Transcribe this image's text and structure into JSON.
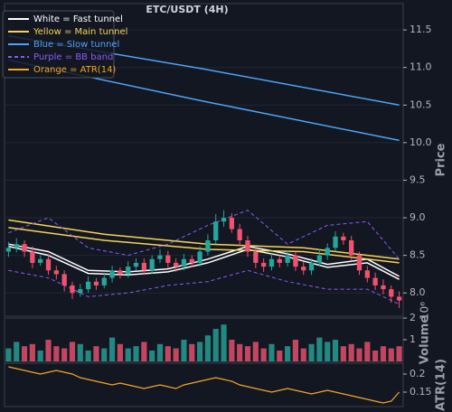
{
  "chart_data": [
    {
      "type": "candlestick",
      "title": "ETC/USDT (4H)",
      "ylabel": "Price",
      "xlim": [
        -0.5,
        49.5
      ],
      "ylim": [
        7.69,
        11.85
      ],
      "yticks": [
        {
          "value": 8,
          "label": "8.0"
        },
        8.5,
        {
          "value": 9,
          "label": "9.0"
        },
        9.5,
        {
          "value": 10,
          "label": "10.0"
        },
        10.5,
        {
          "value": 11,
          "label": "11.0"
        },
        11.5
      ],
      "grid": true,
      "legend": "upper left",
      "up_color": "#26a69a",
      "down_color": "#ef5370",
      "open": [
        8.55,
        8.6,
        8.65,
        8.55,
        8.4,
        8.45,
        8.3,
        8.25,
        8.1,
        8.0,
        8.05,
        8.15,
        8.1,
        8.2,
        8.3,
        8.25,
        8.35,
        8.4,
        8.3,
        8.45,
        8.5,
        8.4,
        8.35,
        8.45,
        8.4,
        8.55,
        8.7,
        8.95,
        9.0,
        8.85,
        8.7,
        8.55,
        8.4,
        8.35,
        8.45,
        8.4,
        8.5,
        8.35,
        8.3,
        8.4,
        8.5,
        8.6,
        8.75,
        8.7,
        8.5,
        8.3,
        8.2,
        8.1,
        8.05,
        7.95
      ],
      "high": [
        8.68,
        8.73,
        8.7,
        8.62,
        8.5,
        8.52,
        8.36,
        8.3,
        8.15,
        8.12,
        8.22,
        8.2,
        8.27,
        8.36,
        8.34,
        8.42,
        8.46,
        8.46,
        8.5,
        8.58,
        8.56,
        8.46,
        8.52,
        8.5,
        8.62,
        8.78,
        9.05,
        9.1,
        9.06,
        8.92,
        8.76,
        8.6,
        8.46,
        8.52,
        8.5,
        8.56,
        8.55,
        8.42,
        8.46,
        8.58,
        8.66,
        8.82,
        8.8,
        8.76,
        8.55,
        8.36,
        8.27,
        8.18,
        8.1,
        8.02
      ],
      "low": [
        8.48,
        8.54,
        8.48,
        8.33,
        8.36,
        8.24,
        8.18,
        8.02,
        7.92,
        7.95,
        8.0,
        8.04,
        8.06,
        8.14,
        8.19,
        8.2,
        8.3,
        8.24,
        8.25,
        8.4,
        8.33,
        8.28,
        8.3,
        8.34,
        8.35,
        8.5,
        8.65,
        8.88,
        8.8,
        8.63,
        8.48,
        8.33,
        8.28,
        8.3,
        8.34,
        8.35,
        8.29,
        8.24,
        8.24,
        8.35,
        8.44,
        8.55,
        8.64,
        8.44,
        8.24,
        8.14,
        8.04,
        7.98,
        7.87,
        7.8
      ],
      "close": [
        8.6,
        8.65,
        8.55,
        8.4,
        8.45,
        8.3,
        8.25,
        8.1,
        8.0,
        8.05,
        8.15,
        8.1,
        8.2,
        8.3,
        8.25,
        8.35,
        8.4,
        8.3,
        8.45,
        8.5,
        8.4,
        8.35,
        8.45,
        8.4,
        8.55,
        8.7,
        8.95,
        9.0,
        8.85,
        8.7,
        8.55,
        8.4,
        8.35,
        8.45,
        8.4,
        8.5,
        8.35,
        8.3,
        8.4,
        8.5,
        8.6,
        8.75,
        8.7,
        8.5,
        8.3,
        8.2,
        8.1,
        8.05,
        7.95,
        7.9
      ],
      "series": [
        {
          "name": "White = Fast tunnel",
          "color": "#ffffff",
          "style": "solid",
          "x": [
            0,
            5,
            10,
            15,
            20,
            25,
            30,
            35,
            40,
            45,
            49
          ],
          "upper": [
            8.65,
            8.55,
            8.3,
            8.28,
            8.32,
            8.45,
            8.62,
            8.52,
            8.38,
            8.45,
            8.22
          ],
          "lower": [
            8.62,
            8.5,
            8.26,
            8.24,
            8.28,
            8.4,
            8.58,
            8.48,
            8.34,
            8.4,
            8.18
          ]
        },
        {
          "name": "Yellow = Main tunnel",
          "color": "#f7d358",
          "style": "solid",
          "x": [
            0,
            12,
            25,
            37,
            49
          ],
          "upper": [
            8.97,
            8.78,
            8.65,
            8.6,
            8.45
          ],
          "lower": [
            8.87,
            8.7,
            8.58,
            8.55,
            8.4
          ]
        },
        {
          "name": "Blue = Slow tunnel",
          "color": "#4fa3f7",
          "style": "solid",
          "x": [
            0,
            24.5,
            49
          ],
          "upper": [
            11.42,
            10.98,
            10.5
          ],
          "lower": [
            11.1,
            10.55,
            10.03
          ]
        },
        {
          "name": "Purple = BB band",
          "color": "#8b5cf6",
          "style": "dashed",
          "x": [
            0,
            5,
            10,
            15,
            20,
            25,
            30,
            35,
            40,
            45,
            49
          ],
          "upper": [
            8.8,
            9.0,
            8.6,
            8.5,
            8.65,
            8.9,
            9.1,
            8.65,
            8.9,
            8.95,
            8.45
          ],
          "lower": [
            8.3,
            8.2,
            7.95,
            8.0,
            8.1,
            8.15,
            8.3,
            8.15,
            8.05,
            8.05,
            7.85
          ]
        }
      ]
    },
    {
      "type": "bar",
      "ylabel": "Volume",
      "offset_label": "10⁶",
      "xlim": [
        -0.5,
        49.5
      ],
      "ylim": [
        0,
        2
      ],
      "yticks": [
        1,
        2
      ],
      "values": [
        0.6,
        0.9,
        0.7,
        0.8,
        0.5,
        1.0,
        0.7,
        0.6,
        0.9,
        0.8,
        0.5,
        0.7,
        0.6,
        1.1,
        0.8,
        0.6,
        0.7,
        0.9,
        0.5,
        0.8,
        0.7,
        0.6,
        1.0,
        0.8,
        0.9,
        1.2,
        1.5,
        1.7,
        1.0,
        0.8,
        0.7,
        0.9,
        0.6,
        0.8,
        0.5,
        0.7,
        1.0,
        0.6,
        0.8,
        1.1,
        0.9,
        1.0,
        0.7,
        0.8,
        0.6,
        0.9,
        0.5,
        0.7,
        0.6,
        0.7
      ]
    },
    {
      "type": "line",
      "ylabel": "ATR(14)",
      "xlim": [
        -0.5,
        49.5
      ],
      "ylim": [
        0.11,
        0.23
      ],
      "yticks": [
        0.15,
        0.2
      ],
      "series": [
        {
          "name": "Orange = ATR(14)",
          "color": "#f5a623",
          "values": [
            0.22,
            0.215,
            0.21,
            0.205,
            0.2,
            0.205,
            0.21,
            0.205,
            0.2,
            0.19,
            0.185,
            0.18,
            0.175,
            0.17,
            0.175,
            0.17,
            0.165,
            0.16,
            0.165,
            0.17,
            0.165,
            0.16,
            0.17,
            0.175,
            0.18,
            0.185,
            0.19,
            0.185,
            0.18,
            0.17,
            0.165,
            0.16,
            0.155,
            0.15,
            0.155,
            0.16,
            0.155,
            0.15,
            0.145,
            0.15,
            0.155,
            0.15,
            0.145,
            0.14,
            0.135,
            0.13,
            0.125,
            0.12,
            0.125,
            0.15
          ]
        }
      ]
    }
  ]
}
